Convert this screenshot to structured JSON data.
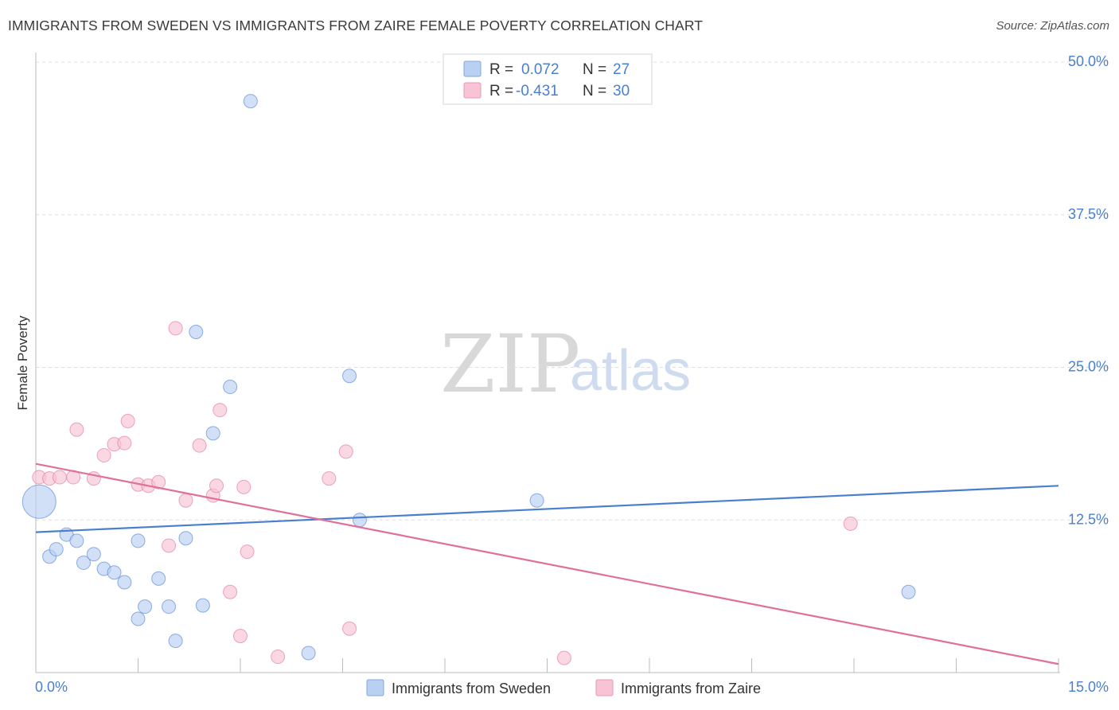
{
  "chart_data": {
    "type": "scatter",
    "title": "IMMIGRANTS FROM SWEDEN VS IMMIGRANTS FROM ZAIRE FEMALE POVERTY CORRELATION CHART",
    "source": "Source: ZipAtlas.com",
    "xlabel": "",
    "ylabel": "Female Poverty",
    "xlim": [
      0,
      15
    ],
    "ylim": [
      0,
      50
    ],
    "x_tick_labels": [
      "0.0%",
      "15.0%"
    ],
    "y_ticks": [
      {
        "value": 12.5,
        "label": "12.5%"
      },
      {
        "value": 25,
        "label": "25.0%"
      },
      {
        "value": 37.5,
        "label": "37.5%"
      },
      {
        "value": 50,
        "label": "50.0%"
      }
    ],
    "watermark": {
      "part1": "ZIP",
      "part2": "atlas"
    },
    "legend": {
      "rows": [
        {
          "r_label": "R =",
          "r_value": "0.072",
          "n_label": "N =",
          "n_value": "27"
        },
        {
          "r_label": "R =",
          "r_value": "-0.431",
          "n_label": "N =",
          "n_value": "30"
        }
      ]
    },
    "series": [
      {
        "name": "Immigrants from Sweden",
        "color": "#4a7fd0",
        "fill": "#b8d0f2",
        "trend": {
          "x0": 0,
          "y0": 11.5,
          "x1": 15,
          "y1": 15.3
        },
        "points": [
          {
            "x": 0.05,
            "y": 14.0,
            "big": true
          },
          {
            "x": 0.2,
            "y": 9.5
          },
          {
            "x": 0.3,
            "y": 10.1
          },
          {
            "x": 0.45,
            "y": 11.3
          },
          {
            "x": 0.6,
            "y": 10.8
          },
          {
            "x": 0.7,
            "y": 9.0
          },
          {
            "x": 0.85,
            "y": 9.7
          },
          {
            "x": 1.0,
            "y": 8.5
          },
          {
            "x": 1.15,
            "y": 8.2
          },
          {
            "x": 1.3,
            "y": 7.4
          },
          {
            "x": 1.5,
            "y": 10.8
          },
          {
            "x": 1.5,
            "y": 4.4
          },
          {
            "x": 1.6,
            "y": 5.4
          },
          {
            "x": 1.8,
            "y": 7.7
          },
          {
            "x": 1.95,
            "y": 5.4
          },
          {
            "x": 2.05,
            "y": 2.6
          },
          {
            "x": 2.2,
            "y": 11.0
          },
          {
            "x": 2.35,
            "y": 27.9
          },
          {
            "x": 2.45,
            "y": 5.5
          },
          {
            "x": 2.6,
            "y": 19.6
          },
          {
            "x": 2.85,
            "y": 23.4
          },
          {
            "x": 3.15,
            "y": 46.8
          },
          {
            "x": 4.0,
            "y": 1.6
          },
          {
            "x": 4.6,
            "y": 24.3
          },
          {
            "x": 4.75,
            "y": 12.5
          },
          {
            "x": 7.35,
            "y": 14.1
          },
          {
            "x": 12.8,
            "y": 6.6
          }
        ]
      },
      {
        "name": "Immigrants from Zaire",
        "color": "#e0709a",
        "fill": "#f8c3d4",
        "trend": {
          "x0": 0,
          "y0": 17.1,
          "x1": 15,
          "y1": 0.7
        },
        "points": [
          {
            "x": 0.05,
            "y": 16.0
          },
          {
            "x": 0.2,
            "y": 15.9
          },
          {
            "x": 0.35,
            "y": 16.0
          },
          {
            "x": 0.55,
            "y": 16.0
          },
          {
            "x": 0.6,
            "y": 19.9
          },
          {
            "x": 0.85,
            "y": 15.9
          },
          {
            "x": 1.0,
            "y": 17.8
          },
          {
            "x": 1.15,
            "y": 18.7
          },
          {
            "x": 1.3,
            "y": 18.8
          },
          {
            "x": 1.35,
            "y": 20.6
          },
          {
            "x": 1.5,
            "y": 15.4
          },
          {
            "x": 1.65,
            "y": 15.3
          },
          {
            "x": 1.8,
            "y": 15.6
          },
          {
            "x": 1.95,
            "y": 10.4
          },
          {
            "x": 2.05,
            "y": 28.2
          },
          {
            "x": 2.2,
            "y": 14.1
          },
          {
            "x": 2.4,
            "y": 18.6
          },
          {
            "x": 2.6,
            "y": 14.5
          },
          {
            "x": 2.65,
            "y": 15.3
          },
          {
            "x": 2.7,
            "y": 21.5
          },
          {
            "x": 2.85,
            "y": 6.6
          },
          {
            "x": 3.0,
            "y": 3.0
          },
          {
            "x": 3.05,
            "y": 15.2
          },
          {
            "x": 3.1,
            "y": 9.9
          },
          {
            "x": 3.55,
            "y": 1.3
          },
          {
            "x": 4.3,
            "y": 15.9
          },
          {
            "x": 4.55,
            "y": 18.1
          },
          {
            "x": 4.6,
            "y": 3.6
          },
          {
            "x": 7.75,
            "y": 1.2
          },
          {
            "x": 11.95,
            "y": 12.2
          }
        ]
      }
    ]
  }
}
